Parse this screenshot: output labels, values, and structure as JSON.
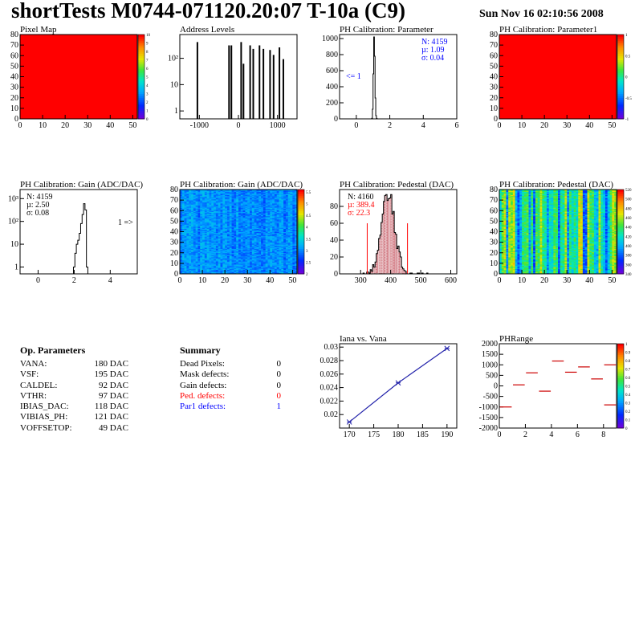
{
  "header": {
    "title": "shortTests M0744-071120.20:07 T-10a (C9)",
    "date": "Sun Nov 16 02:10:56 2008"
  },
  "colors": {
    "hist_line": "#000000",
    "blue_text": "#0000ff",
    "red_text": "#ff0000",
    "pedestal_fill": "#b01020",
    "phrange_marks": "#cc0000",
    "iana_line": "#2222aa"
  },
  "op_parameters": {
    "title": "Op. Parameters",
    "rows": [
      {
        "name": "VANA:",
        "value": "180 DAC"
      },
      {
        "name": "VSF:",
        "value": "195 DAC"
      },
      {
        "name": "CALDEL:",
        "value": "92 DAC"
      },
      {
        "name": "VTHR:",
        "value": "97 DAC"
      },
      {
        "name": "IBIAS_DAC:",
        "value": "118 DAC"
      },
      {
        "name": "VIBIAS_PH:",
        "value": "121 DAC"
      },
      {
        "name": "VOFFSETOP:",
        "value": "49 DAC"
      }
    ]
  },
  "summary": {
    "title": "Summary",
    "rows": [
      {
        "name": "Dead Pixels:",
        "value": "0",
        "color": "#000000"
      },
      {
        "name": "Mask defects:",
        "value": "0",
        "color": "#000000"
      },
      {
        "name": "Gain defects:",
        "value": "0",
        "color": "#000000"
      },
      {
        "name": "Ped. defects:",
        "value": "0",
        "color": "#ff0000"
      },
      {
        "name": "Par1 defects:",
        "value": "1",
        "color": "#0000ff"
      }
    ]
  },
  "chart_data": [
    {
      "id": "pixel_map",
      "type": "heatmap",
      "title": "Pixel Map",
      "xlim": [
        0,
        52
      ],
      "ylim": [
        0,
        80
      ],
      "xticks": [
        0,
        10,
        20,
        30,
        40,
        50
      ],
      "yticks": [
        0,
        10,
        20,
        30,
        40,
        50,
        60,
        70,
        80
      ],
      "uniform_value": 10,
      "zlim": [
        0,
        10
      ],
      "zticks": [
        0,
        1,
        2,
        3,
        4,
        5,
        6,
        7,
        8,
        9,
        10
      ]
    },
    {
      "id": "address_levels",
      "type": "bar",
      "title": "Address Levels",
      "xlim": [
        -1500,
        1500
      ],
      "xticks": [
        -1000,
        0,
        1000
      ],
      "ylog": true,
      "ylim": [
        0.5,
        800
      ],
      "yticks": [
        1,
        10,
        100
      ],
      "ytick_labels": [
        "1",
        "10",
        "10²"
      ],
      "peaks": [
        {
          "x": -1050,
          "y": 400,
          "w": 10
        },
        {
          "x": -240,
          "y": 300,
          "w": 10
        },
        {
          "x": -180,
          "y": 300,
          "w": 10
        },
        {
          "x": 70,
          "y": 400,
          "w": 10
        },
        {
          "x": 130,
          "y": 60,
          "w": 10
        },
        {
          "x": 300,
          "y": 300,
          "w": 10
        },
        {
          "x": 380,
          "y": 220,
          "w": 10
        },
        {
          "x": 540,
          "y": 300,
          "w": 10
        },
        {
          "x": 640,
          "y": 220,
          "w": 10
        },
        {
          "x": 810,
          "y": 200,
          "w": 10
        },
        {
          "x": 900,
          "y": 130,
          "w": 10
        },
        {
          "x": 1050,
          "y": 250,
          "w": 10
        },
        {
          "x": 1150,
          "y": 90,
          "w": 10
        }
      ]
    },
    {
      "id": "ph_cal_parameter",
      "type": "bar",
      "title": "PH Calibration: Parameter",
      "xlim": [
        -1,
        6
      ],
      "xticks": [
        0,
        2,
        4,
        6
      ],
      "ylim": [
        0,
        1050
      ],
      "yticks": [
        0,
        200,
        400,
        600,
        800,
        1000
      ],
      "x": [
        0.94,
        0.98,
        1.02,
        1.06,
        1.1,
        1.14,
        1.18,
        1.22
      ],
      "values": [
        8,
        120,
        560,
        1020,
        780,
        260,
        40,
        6
      ],
      "stats": [
        "N: 4159",
        "µ: 1.09",
        "σ: 0.04"
      ],
      "underflow_label": "<= 1"
    },
    {
      "id": "ph_cal_parameter1",
      "type": "heatmap",
      "title": "PH Calibration: Parameter1",
      "xlim": [
        0,
        52
      ],
      "ylim": [
        0,
        80
      ],
      "xticks": [
        0,
        10,
        20,
        30,
        40,
        50
      ],
      "yticks": [
        0,
        10,
        20,
        30,
        40,
        50,
        60,
        70,
        80
      ],
      "uniform_value": 1,
      "zlim": [
        -1,
        1
      ],
      "zticks": [
        -1,
        -0.5,
        0,
        0.5,
        1
      ]
    },
    {
      "id": "ph_cal_gain_hist",
      "type": "bar",
      "title": "PH Calibration: Gain (ADC/DAC)",
      "xlim": [
        -1,
        5.5
      ],
      "xticks": [
        0,
        2,
        4
      ],
      "ylog": true,
      "ylim": [
        0.5,
        2500
      ],
      "yticks": [
        1,
        10,
        100,
        1000
      ],
      "ytick_labels": [
        "1",
        "10",
        "10²",
        "10³"
      ],
      "x": [
        2.0,
        2.08,
        2.16,
        2.24,
        2.32,
        2.4,
        2.48,
        2.56,
        2.64,
        2.72
      ],
      "values": [
        1,
        4,
        10,
        15,
        30,
        80,
        200,
        600,
        320,
        1
      ],
      "stats": [
        "N: 4159",
        "µ: 2.50",
        "σ: 0.08"
      ],
      "overflow_label": "1 =>"
    },
    {
      "id": "ph_cal_gain_map",
      "type": "heatmap",
      "title": "PH Calibration: Gain (ADC/DAC)",
      "xlim": [
        0,
        52
      ],
      "ylim": [
        0,
        80
      ],
      "xticks": [
        0,
        10,
        20,
        30,
        40,
        50
      ],
      "yticks": [
        0,
        10,
        20,
        30,
        40,
        50,
        60,
        70,
        80
      ],
      "zlim": [
        2,
        5.6
      ],
      "zticks": [
        2,
        2.5,
        3,
        3.5,
        4,
        4.5,
        5,
        5.5
      ],
      "typical_value": 2.5
    },
    {
      "id": "ph_cal_pedestal_hist",
      "type": "bar",
      "title": "PH Calibration: Pedestal (DAC)",
      "xlim": [
        230,
        620
      ],
      "xticks": [
        300,
        400,
        500,
        600
      ],
      "ylim": [
        0,
        100
      ],
      "yticks": [
        0,
        20,
        40,
        60,
        80
      ],
      "mean": 389.4,
      "sigma": 22.3,
      "peak": 93,
      "cut_lines": [
        322,
        456
      ],
      "stats": [
        "N: 4160",
        "µ: 389.4",
        "σ: 22.3"
      ]
    },
    {
      "id": "ph_cal_pedestal_map",
      "type": "heatmap",
      "title": "PH Calibration: Pedestal (DAC)",
      "xlim": [
        0,
        52
      ],
      "ylim": [
        0,
        80
      ],
      "xticks": [
        0,
        10,
        20,
        30,
        40,
        50
      ],
      "yticks": [
        0,
        10,
        20,
        30,
        40,
        50,
        60,
        70,
        80
      ],
      "zlim": [
        340,
        520
      ],
      "zticks": [
        340,
        360,
        380,
        400,
        420,
        440,
        460,
        480,
        500,
        520
      ]
    },
    {
      "id": "iana_vs_vana",
      "type": "line",
      "title": "Iana vs. Vana",
      "xlim": [
        168,
        192
      ],
      "xticks": [
        170,
        175,
        180,
        185,
        190
      ],
      "ylim": [
        0.018,
        0.0305
      ],
      "yticks": [
        0.02,
        0.022,
        0.024,
        0.026,
        0.028,
        0.03
      ],
      "x": [
        170,
        180,
        190
      ],
      "y": [
        0.0189,
        0.0247,
        0.0298
      ]
    },
    {
      "id": "phrange",
      "type": "scatter",
      "title": "PHRange",
      "xlim": [
        0,
        9
      ],
      "xticks": [
        0,
        2,
        4,
        6,
        8
      ],
      "ylim": [
        -2000,
        2000
      ],
      "yticks": [
        -2000,
        -1500,
        -1000,
        -500,
        0,
        500,
        1000,
        1500,
        2000
      ],
      "x": [
        0.5,
        1.5,
        2.5,
        3.5,
        4.5,
        5.5,
        6.5,
        7.5,
        8.5
      ],
      "y": [
        -1000,
        50,
        620,
        -250,
        1180,
        650,
        900,
        330,
        1000
      ],
      "extra": [
        {
          "x": 8.5,
          "y": -900
        }
      ],
      "zlim": [
        0,
        1
      ],
      "zticks": [
        0,
        0.1,
        0.2,
        0.3,
        0.4,
        0.5,
        0.6,
        0.7,
        0.8,
        0.9,
        1
      ]
    }
  ]
}
